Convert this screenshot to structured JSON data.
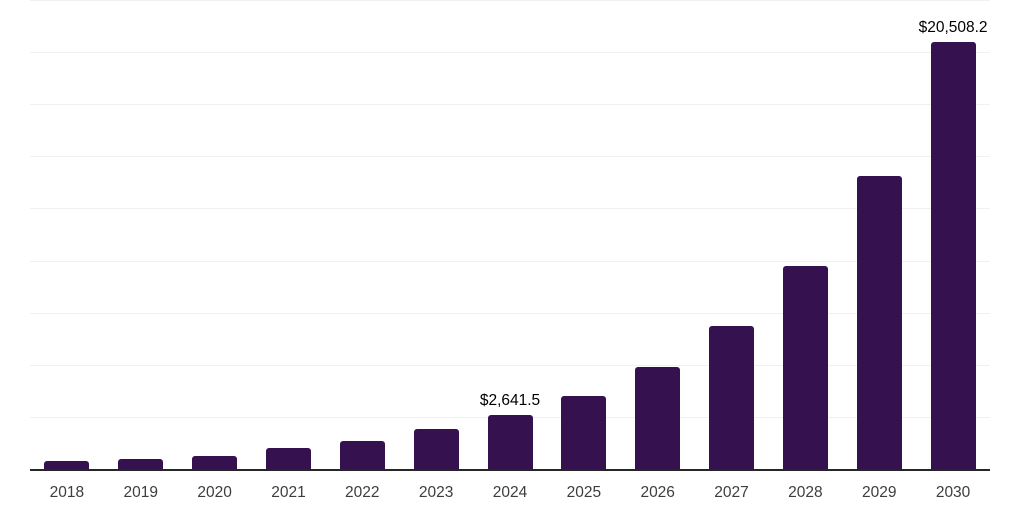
{
  "chart_data": {
    "type": "bar",
    "title": "",
    "xlabel": "",
    "ylabel": "",
    "categories": [
      "2018",
      "2019",
      "2020",
      "2021",
      "2022",
      "2023",
      "2024",
      "2025",
      "2026",
      "2027",
      "2028",
      "2029",
      "2030"
    ],
    "values": [
      410,
      525,
      670,
      1050,
      1400,
      1950,
      2641.5,
      3540,
      4930,
      6890,
      9750,
      14060,
      20508.2
    ],
    "data_labels": {
      "2024": "$2,641.5",
      "2030": "$20,508.2"
    },
    "ylim": [
      0,
      22500
    ],
    "gridline_step": 2500,
    "grid": "horizontal-only",
    "legend": "none",
    "colors": {
      "bar": "#351150",
      "gridline": "#f0f0f0",
      "axis_line": "#262626",
      "tick_label": "#3d3d3d",
      "data_label": "#000000",
      "background": "#ffffff"
    }
  }
}
